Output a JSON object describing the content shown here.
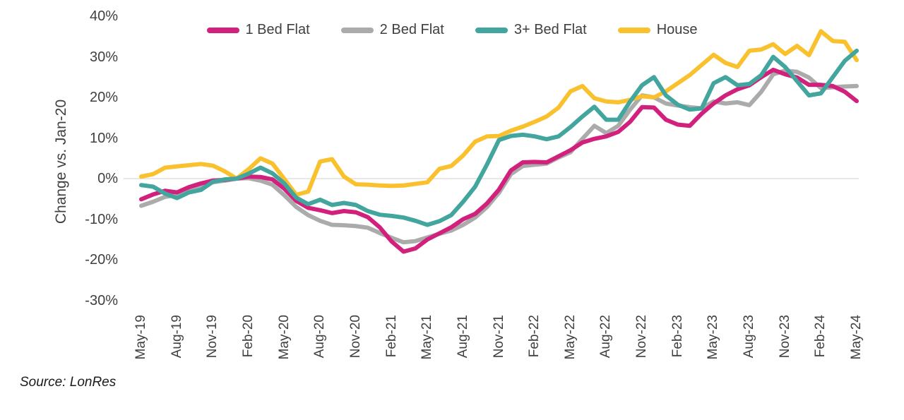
{
  "legend": {
    "items": [
      {
        "label": "1 Bed Flat",
        "color": "#d2207d"
      },
      {
        "label": "2 Bed Flat",
        "color": "#ababab"
      },
      {
        "label": "3+ Bed Flat",
        "color": "#42a59e"
      },
      {
        "label": "House",
        "color": "#fac12f"
      }
    ]
  },
  "source_note": "Source: LonRes",
  "colors": {
    "axis_text": "#404040",
    "legend_text": "#3f3f3f",
    "gridline": "#d9d9d9",
    "source_text": "#1a1a1a",
    "background": "#ffffff"
  },
  "chart_data": {
    "type": "line",
    "title": "",
    "xlabel": "",
    "ylabel": "Change vs. Jan-20",
    "legend_position": "top",
    "grid": "single horizontal gridline at 0% only",
    "x": [
      "May-19",
      "Jun-19",
      "Jul-19",
      "Aug-19",
      "Sep-19",
      "Oct-19",
      "Nov-19",
      "Dec-19",
      "Jan-20",
      "Feb-20",
      "Mar-20",
      "Apr-20",
      "May-20",
      "Jun-20",
      "Jul-20",
      "Aug-20",
      "Sep-20",
      "Oct-20",
      "Nov-20",
      "Dec-20",
      "Jan-21",
      "Feb-21",
      "Mar-21",
      "Apr-21",
      "May-21",
      "Jun-21",
      "Jul-21",
      "Aug-21",
      "Sep-21",
      "Oct-21",
      "Nov-21",
      "Dec-21",
      "Jan-22",
      "Feb-22",
      "Mar-22",
      "Apr-22",
      "May-22",
      "Jun-22",
      "Jul-22",
      "Aug-22",
      "Sep-22",
      "Oct-22",
      "Nov-22",
      "Dec-22",
      "Jan-23",
      "Feb-23",
      "Mar-23",
      "Apr-23",
      "May-23",
      "Jun-23",
      "Jul-23",
      "Aug-23",
      "Sep-23",
      "Oct-23",
      "Nov-23",
      "Dec-23",
      "Jan-24",
      "Feb-24",
      "Mar-24",
      "Apr-24",
      "May-24"
    ],
    "x_axis": {
      "ticks": [
        {
          "label": "May-19",
          "month_index": 0
        },
        {
          "label": "Aug-19",
          "month_index": 3
        },
        {
          "label": "Nov-19",
          "month_index": 6
        },
        {
          "label": "Feb-20",
          "month_index": 9
        },
        {
          "label": "May-20",
          "month_index": 12
        },
        {
          "label": "Aug-20",
          "month_index": 15
        },
        {
          "label": "Nov-20",
          "month_index": 18
        },
        {
          "label": "Feb-21",
          "month_index": 21
        },
        {
          "label": "May-21",
          "month_index": 24
        },
        {
          "label": "Aug-21",
          "month_index": 27
        },
        {
          "label": "Nov-21",
          "month_index": 30
        },
        {
          "label": "Feb-22",
          "month_index": 33
        },
        {
          "label": "May-22",
          "month_index": 36
        },
        {
          "label": "Aug-22",
          "month_index": 39
        },
        {
          "label": "Nov-22",
          "month_index": 42
        },
        {
          "label": "Feb-23",
          "month_index": 45
        },
        {
          "label": "May-23",
          "month_index": 48
        },
        {
          "label": "Aug-23",
          "month_index": 51
        },
        {
          "label": "Nov-23",
          "month_index": 54
        },
        {
          "label": "Feb-24",
          "month_index": 57
        },
        {
          "label": "May-24",
          "month_index": 60
        }
      ]
    },
    "y_axis": {
      "range": [
        -30,
        40
      ],
      "ticks": [
        {
          "label": "40%",
          "value": 40
        },
        {
          "label": "30%",
          "value": 30
        },
        {
          "label": "20%",
          "value": 20
        },
        {
          "label": "10%",
          "value": 10
        },
        {
          "label": "0%",
          "value": 0
        },
        {
          "label": "-10%",
          "value": -10
        },
        {
          "label": "-20%",
          "value": -20
        },
        {
          "label": "-30%",
          "value": -30
        }
      ]
    },
    "series": [
      {
        "name": "1 Bed Flat",
        "color": "#d2207d",
        "values": [
          -5.1,
          -3.9,
          -3.0,
          -3.4,
          -2.1,
          -1.2,
          -0.5,
          -0.3,
          0,
          0.5,
          0.4,
          -0.2,
          -2.5,
          -5.5,
          -7.2,
          -7.8,
          -8.5,
          -8.0,
          -8.3,
          -9.5,
          -12.0,
          -15.5,
          -18.0,
          -17.2,
          -15.0,
          -13.5,
          -12.0,
          -10.0,
          -8.7,
          -6.1,
          -2.7,
          2.0,
          4.0,
          4.1,
          4.0,
          5.5,
          7.0,
          8.9,
          9.8,
          10.4,
          11.5,
          14.0,
          17.6,
          17.5,
          14.5,
          13.3,
          13.0,
          16.0,
          18.5,
          20.5,
          22.0,
          23.0,
          25.0,
          26.8,
          25.7,
          24.9,
          23.1,
          23.1,
          22.8,
          21.4,
          19.1
        ]
      },
      {
        "name": "2 Bed Flat",
        "color": "#ababab",
        "values": [
          -6.7,
          -5.7,
          -4.5,
          -4.0,
          -3.1,
          -1.9,
          -0.9,
          -0.5,
          0,
          0.1,
          -0.5,
          -1.5,
          -4.1,
          -7.0,
          -9.0,
          -10.4,
          -11.4,
          -11.5,
          -11.7,
          -12.1,
          -13.4,
          -14.6,
          -15.7,
          -15.4,
          -14.5,
          -13.6,
          -12.8,
          -11.4,
          -9.6,
          -7.0,
          -3.5,
          1.1,
          3.1,
          3.4,
          3.7,
          5.2,
          6.5,
          9.8,
          13.0,
          11.2,
          13.0,
          17.0,
          20.5,
          20.0,
          18.5,
          18.0,
          17.6,
          17.3,
          19.0,
          18.5,
          18.8,
          18.1,
          21.4,
          25.7,
          26.6,
          26.3,
          24.9,
          22.3,
          22.5,
          22.7,
          22.8
        ]
      },
      {
        "name": "3+ Bed Flat",
        "color": "#42a59e",
        "values": [
          -1.6,
          -2.0,
          -3.7,
          -4.8,
          -3.4,
          -2.8,
          -0.8,
          -0.2,
          0,
          1.2,
          2.7,
          1.3,
          -1.2,
          -4.7,
          -6.3,
          -5.2,
          -6.5,
          -6.0,
          -6.5,
          -8.0,
          -8.9,
          -9.2,
          -9.6,
          -10.4,
          -11.4,
          -10.5,
          -9.0,
          -5.7,
          -2.0,
          3.5,
          9.5,
          10.5,
          10.8,
          10.4,
          9.7,
          10.4,
          12.7,
          15.3,
          17.7,
          14.5,
          14.5,
          19.0,
          23.0,
          25.0,
          20.5,
          18.2,
          17.0,
          17.3,
          23.5,
          25.0,
          23.0,
          23.3,
          25.5,
          30.0,
          27.5,
          24.0,
          20.5,
          21.0,
          25.0,
          29.0,
          31.5
        ]
      },
      {
        "name": "House",
        "color": "#fac12f",
        "values": [
          0.5,
          1.1,
          2.7,
          3.0,
          3.3,
          3.6,
          3.2,
          1.8,
          0,
          2.3,
          5.0,
          3.7,
          -0.1,
          -4.0,
          -3.2,
          4.2,
          4.8,
          0.5,
          -1.4,
          -1.5,
          -1.7,
          -1.8,
          -1.7,
          -1.3,
          -0.9,
          2.4,
          3.1,
          5.7,
          9.1,
          10.4,
          10.5,
          11.8,
          12.8,
          14.0,
          15.3,
          17.5,
          21.5,
          22.8,
          19.8,
          19.0,
          18.8,
          19.4,
          20.3,
          20.0,
          21.5,
          23.5,
          25.5,
          28.0,
          30.5,
          28.5,
          27.5,
          31.5,
          31.8,
          33.1,
          30.7,
          32.7,
          30.4,
          36.3,
          33.9,
          33.7,
          29.2
        ]
      }
    ],
    "draw_order": [
      "2 Bed Flat",
      "1 Bed Flat",
      "House",
      "3+ Bed Flat"
    ]
  }
}
